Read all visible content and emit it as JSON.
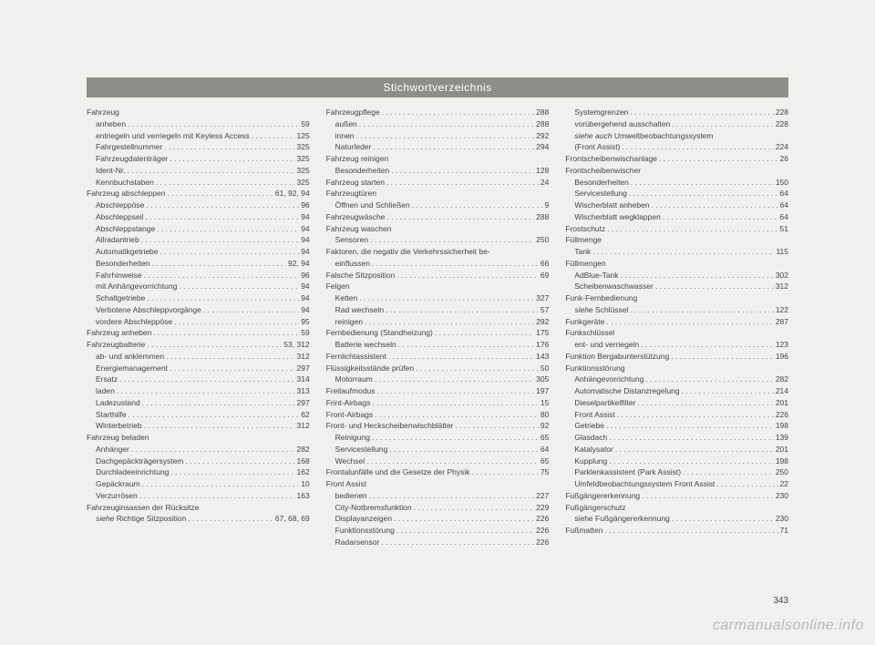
{
  "title": "Stichwortverzeichnis",
  "page_number": "343",
  "watermark": "carmanualsonline.info",
  "columns": [
    [
      {
        "t": "Fahrzeug",
        "i": 0
      },
      {
        "t": "anheben",
        "p": "59",
        "i": 1
      },
      {
        "t": "entriegeln und verriegeln mit Keyless Access",
        "p": "125",
        "i": 1
      },
      {
        "t": "Fahrgestellnummer",
        "p": "325",
        "i": 1
      },
      {
        "t": "Fahrzeugdatenträger",
        "p": "325",
        "i": 1
      },
      {
        "t": "Ident-Nr.",
        "p": "325",
        "i": 1
      },
      {
        "t": "Kennbuchstaben",
        "p": "325",
        "i": 1
      },
      {
        "t": "Fahrzeug abschleppen",
        "p": "61, 92, 94",
        "i": 0
      },
      {
        "t": "Abschleppöse",
        "p": "96",
        "i": 1
      },
      {
        "t": "Abschleppseil",
        "p": "94",
        "i": 1
      },
      {
        "t": "Abschleppstange",
        "p": "94",
        "i": 1
      },
      {
        "t": "Allradantrieb",
        "p": "94",
        "i": 1
      },
      {
        "t": "Automatikgetriebe",
        "p": "94",
        "i": 1
      },
      {
        "t": "Besonderheiten",
        "p": "92, 94",
        "i": 1
      },
      {
        "t": "Fahrhinweise",
        "p": "96",
        "i": 1
      },
      {
        "t": "mit Anhängevorrichtung",
        "p": "94",
        "i": 1
      },
      {
        "t": "Schaltgetriebe",
        "p": "94",
        "i": 1
      },
      {
        "t": "Verbotene Abschleppvorgänge",
        "p": "94",
        "i": 1
      },
      {
        "t": "vordere Abschleppöse",
        "p": "95",
        "i": 1
      },
      {
        "t": "Fahrzeug anheben",
        "p": "59",
        "i": 0
      },
      {
        "t": "Fahrzeugbatterie",
        "p": "53, 312",
        "i": 0
      },
      {
        "t": "ab- und anklemmen",
        "p": "312",
        "i": 1
      },
      {
        "t": "Energiemanagement",
        "p": "297",
        "i": 1
      },
      {
        "t": "Ersatz",
        "p": "314",
        "i": 1
      },
      {
        "t": "laden",
        "p": "313",
        "i": 1
      },
      {
        "t": "Ladezustand",
        "p": "297",
        "i": 1
      },
      {
        "t": "Starthilfe",
        "p": "62",
        "i": 1
      },
      {
        "t": "Winterbetrieb",
        "p": "312",
        "i": 1
      },
      {
        "t": "Fahrzeug beladen",
        "i": 0
      },
      {
        "t": "Anhänger",
        "p": "282",
        "i": 1
      },
      {
        "t": "Dachgepäckträgersystem",
        "p": "168",
        "i": 1
      },
      {
        "t": "Durchladeeinrichtung",
        "p": "162",
        "i": 1
      },
      {
        "t": "Gepäckraum",
        "p": "10",
        "i": 1
      },
      {
        "t": "Verzurrösen",
        "p": "163",
        "i": 1
      },
      {
        "t": "Fahrzeuginsassen der Rücksitze",
        "i": 0
      },
      {
        "pre": "siehe ",
        "t": "Richtige Sitzposition",
        "p": "67, 68, 69",
        "i": 1,
        "it": true
      }
    ],
    [
      {
        "t": "Fahrzeugpflege",
        "p": "288",
        "i": 0
      },
      {
        "t": "außen",
        "p": "288",
        "i": 1
      },
      {
        "t": "innen",
        "p": "292",
        "i": 1
      },
      {
        "t": "Naturleder",
        "p": "294",
        "i": 1
      },
      {
        "t": "Fahrzeug reinigen",
        "i": 0
      },
      {
        "t": "Besonderheiten",
        "p": "128",
        "i": 1
      },
      {
        "t": "Fahrzeug starten",
        "p": "24",
        "i": 0
      },
      {
        "t": "Fahrzeugtüren",
        "i": 0
      },
      {
        "t": "Öffnen und Schließen",
        "p": "9",
        "i": 1
      },
      {
        "t": "Fahrzeugwäsche",
        "p": "288",
        "i": 0
      },
      {
        "t": "Fahrzeug waschen",
        "i": 0
      },
      {
        "t": "Sensoren",
        "p": "250",
        "i": 1
      },
      {
        "t": "Faktoren, die negativ die Verkehrssicherheit be-",
        "i": 0
      },
      {
        "t": "einflussen",
        "p": "66",
        "i": 1
      },
      {
        "t": "Falsche Sitzposition",
        "p": "69",
        "i": 0
      },
      {
        "t": "Felgen",
        "i": 0
      },
      {
        "t": "Ketten",
        "p": "327",
        "i": 1
      },
      {
        "t": "Rad wechseln",
        "p": "57",
        "i": 1
      },
      {
        "t": "reinigen",
        "p": "292",
        "i": 1
      },
      {
        "t": "Fernbedienung (Standheizung)",
        "p": "175",
        "i": 0
      },
      {
        "t": "Batterie wechseln",
        "p": "176",
        "i": 1
      },
      {
        "t": "Fernlichtassistent",
        "p": "143",
        "i": 0
      },
      {
        "t": "Flüssigkeitsstände prüfen",
        "p": "50",
        "i": 0
      },
      {
        "t": "Motorraum",
        "p": "305",
        "i": 1
      },
      {
        "t": "Freilaufmodus",
        "p": "197",
        "i": 0
      },
      {
        "t": "Frint-Airbags",
        "p": "15",
        "i": 0
      },
      {
        "t": "Front-Airbags",
        "p": "80",
        "i": 0
      },
      {
        "t": "Front- und Heckscheibenwischblätter",
        "p": "92",
        "i": 0
      },
      {
        "t": "Reinigung",
        "p": "65",
        "i": 1
      },
      {
        "t": "Servicestellung",
        "p": "64",
        "i": 1
      },
      {
        "t": "Wechsel",
        "p": "65",
        "i": 1
      },
      {
        "t": "Frontalunfälle und die Gesetze der Physik",
        "p": "75",
        "i": 0
      },
      {
        "t": "Front Assist",
        "i": 0
      },
      {
        "t": "bedienen",
        "p": "227",
        "i": 1
      },
      {
        "t": "City-Notbremsfunktion",
        "p": "229",
        "i": 1
      },
      {
        "t": "Displayanzeigen",
        "p": "226",
        "i": 1
      },
      {
        "t": "Funktionsstörung",
        "p": "226",
        "i": 1
      },
      {
        "t": "Radarsensor",
        "p": "226",
        "i": 1
      }
    ],
    [
      {
        "t": "Systemgrenzen",
        "p": "228",
        "i": 1
      },
      {
        "t": "vorübergehend ausschalten",
        "p": "228",
        "i": 1
      },
      {
        "pre": "siehe auch ",
        "t": "Umweltbeobachtungssystem",
        "i": 1,
        "it": true
      },
      {
        "t": "(Front Assist)",
        "p": "224",
        "i": 1,
        "extra": true
      },
      {
        "t": "Frontscheibenwischanlage",
        "p": "26",
        "i": 0
      },
      {
        "t": "Frontscheibenwischer",
        "i": 0
      },
      {
        "t": "Besonderheiten",
        "p": "150",
        "i": 1
      },
      {
        "t": "Servicestellung",
        "p": "64",
        "i": 1
      },
      {
        "t": "Wischerblatt anheben",
        "p": "64",
        "i": 1
      },
      {
        "t": "Wischerblatt wegklappen",
        "p": "64",
        "i": 1
      },
      {
        "t": "Frostschutz",
        "p": "51",
        "i": 0
      },
      {
        "t": "Füllmenge",
        "i": 0
      },
      {
        "t": "Tank",
        "p": "115",
        "i": 1
      },
      {
        "t": "Füllmengen",
        "i": 0
      },
      {
        "t": "AdBlue-Tank",
        "p": "302",
        "i": 1
      },
      {
        "t": "Scheibenwaschwasser",
        "p": "312",
        "i": 1
      },
      {
        "t": "Funk-Fernbedienung",
        "i": 0
      },
      {
        "pre": "siehe ",
        "t": "Schlüssel",
        "p": "122",
        "i": 1,
        "it": true
      },
      {
        "t": "Funkgeräte",
        "p": "287",
        "i": 0
      },
      {
        "t": "Funkschlüssel",
        "i": 0
      },
      {
        "t": "ent- und verriegeln",
        "p": "123",
        "i": 1
      },
      {
        "t": "Funktion Bergabunterstützung",
        "p": "196",
        "i": 0
      },
      {
        "t": "Funktionsstörung",
        "i": 0
      },
      {
        "t": "Anhängevorrichtung",
        "p": "282",
        "i": 1
      },
      {
        "t": "Automatische Distanzregelung",
        "p": "214",
        "i": 1
      },
      {
        "t": "Dieselpartikelfilter",
        "p": "201",
        "i": 1
      },
      {
        "t": "Front Assist",
        "p": "226",
        "i": 1
      },
      {
        "t": "Getriebe",
        "p": "198",
        "i": 1
      },
      {
        "t": "Glasdach",
        "p": "139",
        "i": 1
      },
      {
        "t": "Katalysator",
        "p": "201",
        "i": 1
      },
      {
        "t": "Kupplung",
        "p": "198",
        "i": 1
      },
      {
        "t": "Parklenkassistent (Park Assist)",
        "p": "250",
        "i": 1
      },
      {
        "t": "Umfeldbeobachtungssystem Front Assist",
        "p": "22",
        "i": 1
      },
      {
        "t": "Fußgängererkennung",
        "p": "230",
        "i": 0
      },
      {
        "t": "Fußgängerschutz",
        "i": 0
      },
      {
        "t": "siehe Fußgängererkennung",
        "p": "230",
        "i": 1
      },
      {
        "t": "Fußmatten",
        "p": "71",
        "i": 0
      }
    ]
  ]
}
